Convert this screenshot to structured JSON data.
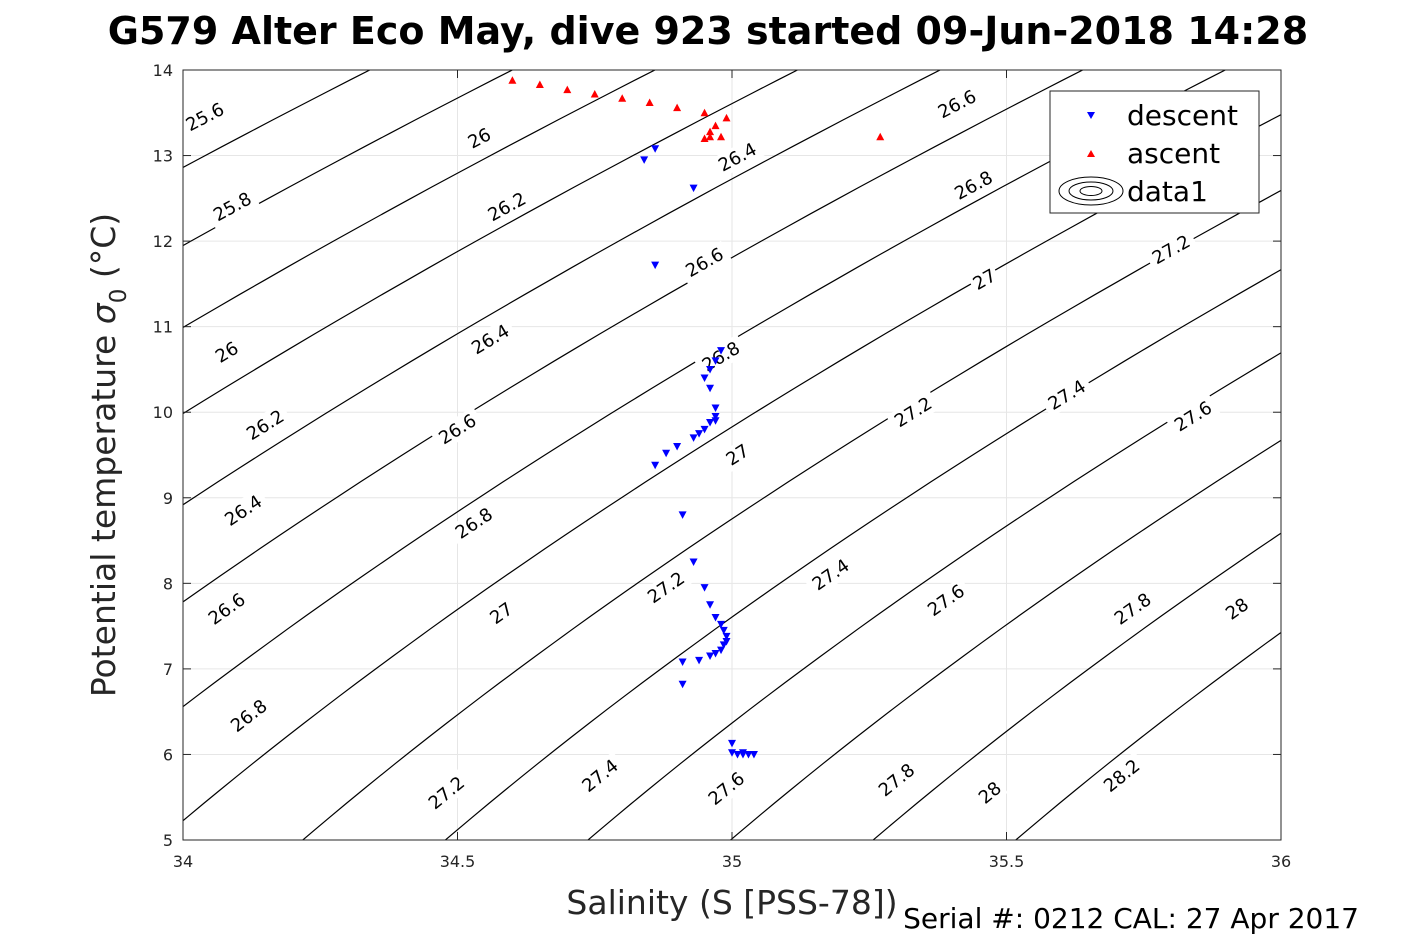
{
  "chart_data": {
    "type": "scatter",
    "title": "G579 Alter Eco May, dive 923 started 09-Jun-2018 14:28",
    "xlabel": "Salinity (S [PSS-78])",
    "ylabel_main": "Potential temperature",
    "ylabel_sym": "σ",
    "ylabel_sub": "0",
    "ylabel_unit": "(°C)",
    "xlim": [
      34,
      36
    ],
    "ylim": [
      5,
      14
    ],
    "xticks": [
      34,
      34.5,
      35,
      35.5,
      36
    ],
    "xtick_labels": [
      "34",
      "34.5",
      "35",
      "35.5",
      "36"
    ],
    "yticks": [
      5,
      6,
      7,
      8,
      9,
      10,
      11,
      12,
      13,
      14
    ],
    "ytick_labels": [
      "5",
      "6",
      "7",
      "8",
      "9",
      "10",
      "11",
      "12",
      "13",
      "14"
    ],
    "grid": true,
    "legend_position": "top-right",
    "footer": "Serial #: 0212  CAL: 27 Apr 2017",
    "contours": {
      "name": "data1",
      "levels": [
        25.6,
        25.8,
        26.0,
        26.2,
        26.4,
        26.6,
        26.8,
        27.0,
        27.2,
        27.4,
        27.6,
        27.8,
        28.0,
        28.2
      ],
      "level_labels": [
        "25.6",
        "25.8",
        "26",
        "26.2",
        "26.4",
        "26.6",
        "26.8",
        "27",
        "27.2",
        "27.4",
        "27.6",
        "27.8",
        "28",
        "28.2"
      ],
      "labels": [
        {
          "text": "25.6",
          "s": 34.04,
          "t": 13.45
        },
        {
          "text": "25.8",
          "s": 34.09,
          "t": 12.4
        },
        {
          "text": "26",
          "s": 34.54,
          "t": 13.2
        },
        {
          "text": "26",
          "s": 34.08,
          "t": 10.7
        },
        {
          "text": "26.2",
          "s": 34.59,
          "t": 12.4
        },
        {
          "text": "26.2",
          "s": 34.15,
          "t": 9.85
        },
        {
          "text": "26.4",
          "s": 35.01,
          "t": 12.98
        },
        {
          "text": "26.4",
          "s": 34.56,
          "t": 10.85
        },
        {
          "text": "26.4",
          "s": 34.11,
          "t": 8.85
        },
        {
          "text": "26.6",
          "s": 35.41,
          "t": 13.6
        },
        {
          "text": "26.6",
          "s": 34.95,
          "t": 11.75
        },
        {
          "text": "26.6",
          "s": 34.5,
          "t": 9.8
        },
        {
          "text": "26.6",
          "s": 34.08,
          "t": 7.7
        },
        {
          "text": "26.8",
          "s": 35.44,
          "t": 12.65
        },
        {
          "text": "26.8",
          "s": 34.98,
          "t": 10.65
        },
        {
          "text": "26.8",
          "s": 34.53,
          "t": 8.7
        },
        {
          "text": "26.8",
          "s": 34.12,
          "t": 6.45
        },
        {
          "text": "27",
          "s": 35.46,
          "t": 11.55
        },
        {
          "text": "27",
          "s": 35.01,
          "t": 9.5
        },
        {
          "text": "27",
          "s": 34.58,
          "t": 7.65
        },
        {
          "text": "27.2",
          "s": 35.8,
          "t": 11.9
        },
        {
          "text": "27.2",
          "s": 35.33,
          "t": 10.0
        },
        {
          "text": "27.2",
          "s": 34.88,
          "t": 7.95
        },
        {
          "text": "27.2",
          "s": 34.48,
          "t": 5.55
        },
        {
          "text": "27.4",
          "s": 35.61,
          "t": 10.2
        },
        {
          "text": "27.4",
          "s": 35.18,
          "t": 8.1
        },
        {
          "text": "27.4",
          "s": 34.76,
          "t": 5.75
        },
        {
          "text": "27.6",
          "s": 35.84,
          "t": 9.95
        },
        {
          "text": "27.6",
          "s": 35.39,
          "t": 7.8
        },
        {
          "text": "27.6",
          "s": 34.99,
          "t": 5.6
        },
        {
          "text": "27.8",
          "s": 35.73,
          "t": 7.7
        },
        {
          "text": "27.8",
          "s": 35.3,
          "t": 5.7
        },
        {
          "text": "28",
          "s": 35.92,
          "t": 7.7
        },
        {
          "text": "28",
          "s": 35.47,
          "t": 5.55
        },
        {
          "text": "28.2",
          "s": 35.71,
          "t": 5.75
        }
      ]
    },
    "series": [
      {
        "name": "descent",
        "marker": "triangle-down",
        "color": "#0000ff",
        "points": [
          [
            34.84,
            12.95
          ],
          [
            34.86,
            13.08
          ],
          [
            34.93,
            12.62
          ],
          [
            34.86,
            11.72
          ],
          [
            34.98,
            10.72
          ],
          [
            34.97,
            10.6
          ],
          [
            34.96,
            10.5
          ],
          [
            34.95,
            10.4
          ],
          [
            34.96,
            10.28
          ],
          [
            34.97,
            10.05
          ],
          [
            34.97,
            9.95
          ],
          [
            34.97,
            9.9
          ],
          [
            34.96,
            9.88
          ],
          [
            34.95,
            9.8
          ],
          [
            34.94,
            9.75
          ],
          [
            34.93,
            9.7
          ],
          [
            34.9,
            9.6
          ],
          [
            34.88,
            9.52
          ],
          [
            34.86,
            9.38
          ],
          [
            34.91,
            8.8
          ],
          [
            34.93,
            8.25
          ],
          [
            34.95,
            7.95
          ],
          [
            34.96,
            7.75
          ],
          [
            34.97,
            7.6
          ],
          [
            34.98,
            7.52
          ],
          [
            34.985,
            7.45
          ],
          [
            34.99,
            7.38
          ],
          [
            34.99,
            7.32
          ],
          [
            34.985,
            7.28
          ],
          [
            34.98,
            7.22
          ],
          [
            34.97,
            7.18
          ],
          [
            34.96,
            7.15
          ],
          [
            34.94,
            7.1
          ],
          [
            34.91,
            7.08
          ],
          [
            34.91,
            6.82
          ],
          [
            35.0,
            6.13
          ],
          [
            35.0,
            6.02
          ],
          [
            35.01,
            6.0
          ],
          [
            35.02,
            6.0
          ],
          [
            35.03,
            6.0
          ],
          [
            35.04,
            6.0
          ],
          [
            35.02,
            6.02
          ]
        ]
      },
      {
        "name": "ascent",
        "marker": "triangle-up",
        "color": "#ff0000",
        "points": [
          [
            34.6,
            13.88
          ],
          [
            34.65,
            13.83
          ],
          [
            34.7,
            13.77
          ],
          [
            34.75,
            13.72
          ],
          [
            34.8,
            13.67
          ],
          [
            34.85,
            13.62
          ],
          [
            34.9,
            13.56
          ],
          [
            34.95,
            13.5
          ],
          [
            34.99,
            13.44
          ],
          [
            34.97,
            13.35
          ],
          [
            34.96,
            13.28
          ],
          [
            34.96,
            13.22
          ],
          [
            34.95,
            13.2
          ],
          [
            34.98,
            13.22
          ],
          [
            35.27,
            13.22
          ]
        ]
      }
    ]
  }
}
